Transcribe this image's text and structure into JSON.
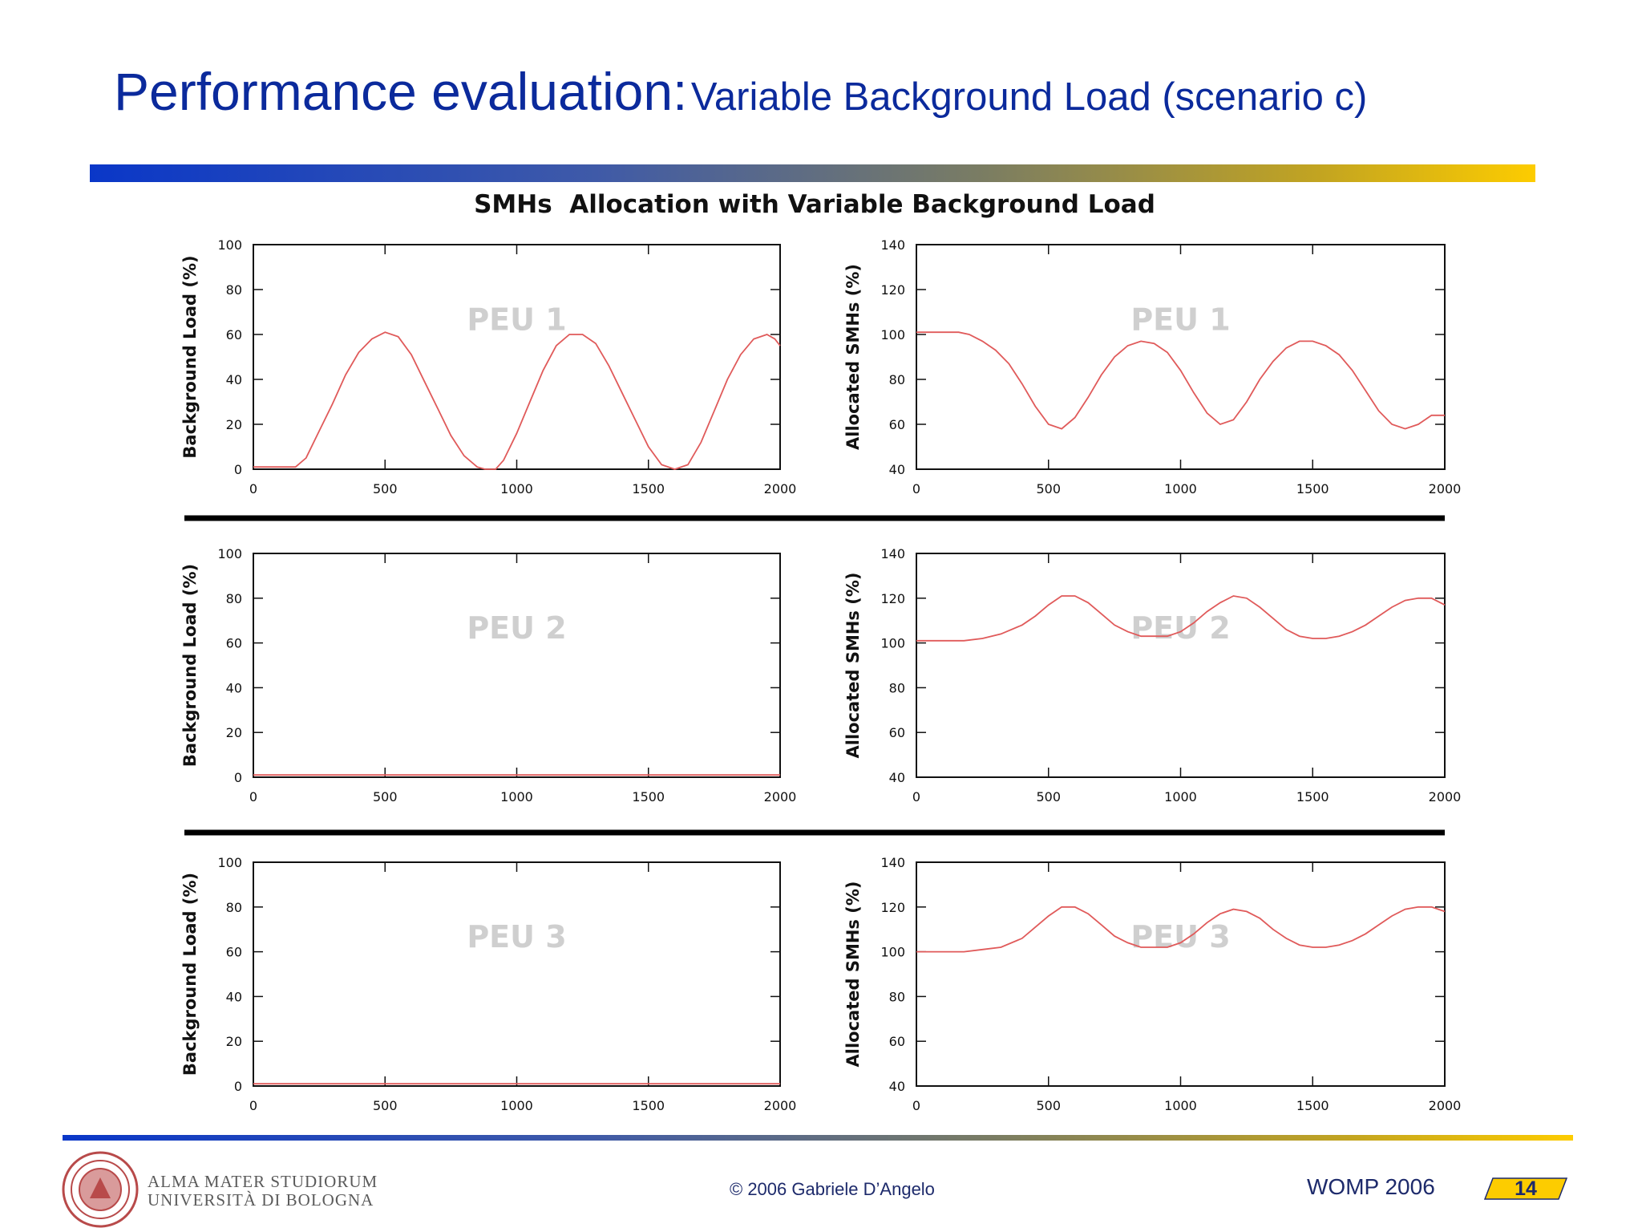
{
  "slide": {
    "title_main": "Performance evaluation:",
    "title_sub": "Variable Background Load (scenario c)"
  },
  "footer": {
    "copyright": "© 2006 Gabriele D’Angelo",
    "conference": "WOMP 2006",
    "page": "14",
    "institution_line1": "ALMA MATER STUDIORUM",
    "institution_line2": "UNIVERSITÀ DI BOLOGNA"
  },
  "colors": {
    "title": "#0b2a9c",
    "series": "#e05a5a",
    "footer_text": "#1d2a6b",
    "page_box": "#fdcc00"
  },
  "chart_data": {
    "title": "SMHs  Allocation with Variable Background Load",
    "type": "line",
    "panels": [
      {
        "peu": "PEU  1",
        "ylabel": "Background Load (%)",
        "ylim": [
          0,
          100
        ],
        "yticks": [
          "0",
          "20",
          "40",
          "60",
          "80",
          "100"
        ],
        "xticks": [
          "0",
          "500",
          "1000",
          "1500",
          "2000"
        ],
        "xlim": [
          0,
          2000
        ],
        "x": [
          0,
          80,
          160,
          200,
          250,
          300,
          350,
          400,
          450,
          500,
          550,
          600,
          650,
          700,
          750,
          800,
          850,
          880,
          920,
          950,
          1000,
          1050,
          1100,
          1150,
          1200,
          1250,
          1300,
          1350,
          1400,
          1450,
          1500,
          1550,
          1600,
          1650,
          1700,
          1750,
          1800,
          1850,
          1900,
          1950,
          1980,
          2000
        ],
        "y": [
          1,
          1,
          1,
          5,
          17,
          29,
          42,
          52,
          58,
          61,
          59,
          51,
          39,
          27,
          15,
          6,
          1,
          0,
          0,
          4,
          16,
          30,
          44,
          55,
          60,
          60,
          56,
          46,
          34,
          22,
          10,
          2,
          0,
          2,
          12,
          26,
          40,
          51,
          58,
          60,
          58,
          55
        ]
      },
      {
        "peu": "PEU  1",
        "ylabel": "Allocated SMHs (%)",
        "ylim": [
          40,
          140
        ],
        "yticks": [
          "40",
          "60",
          "80",
          "100",
          "120",
          "140"
        ],
        "xticks": [
          "0",
          "500",
          "1000",
          "1500",
          "2000"
        ],
        "xlim": [
          0,
          2000
        ],
        "x": [
          0,
          100,
          160,
          200,
          250,
          300,
          350,
          400,
          450,
          500,
          550,
          600,
          650,
          700,
          750,
          800,
          850,
          900,
          950,
          1000,
          1050,
          1100,
          1150,
          1200,
          1250,
          1300,
          1350,
          1400,
          1450,
          1500,
          1550,
          1600,
          1650,
          1700,
          1750,
          1800,
          1850,
          1900,
          1950,
          2000
        ],
        "y": [
          101,
          101,
          101,
          100,
          97,
          93,
          87,
          78,
          68,
          60,
          58,
          63,
          72,
          82,
          90,
          95,
          97,
          96,
          92,
          84,
          74,
          65,
          60,
          62,
          70,
          80,
          88,
          94,
          97,
          97,
          95,
          91,
          84,
          75,
          66,
          60,
          58,
          60,
          64,
          64
        ]
      },
      {
        "peu": "PEU  2",
        "ylabel": "Background Load (%)",
        "ylim": [
          0,
          100
        ],
        "yticks": [
          "0",
          "20",
          "40",
          "60",
          "80",
          "100"
        ],
        "xticks": [
          "0",
          "500",
          "1000",
          "1500",
          "2000"
        ],
        "xlim": [
          0,
          2000
        ],
        "x": [
          0,
          2000
        ],
        "y": [
          1,
          1
        ]
      },
      {
        "peu": "PEU  2",
        "ylabel": "Allocated SMHs (%)",
        "ylim": [
          40,
          140
        ],
        "yticks": [
          "40",
          "60",
          "80",
          "100",
          "120",
          "140"
        ],
        "xticks": [
          "0",
          "500",
          "1000",
          "1500",
          "2000"
        ],
        "xlim": [
          0,
          2000
        ],
        "x": [
          0,
          100,
          180,
          250,
          320,
          400,
          450,
          500,
          550,
          600,
          650,
          700,
          750,
          800,
          850,
          900,
          950,
          1000,
          1050,
          1100,
          1150,
          1200,
          1250,
          1300,
          1350,
          1400,
          1450,
          1500,
          1550,
          1600,
          1650,
          1700,
          1750,
          1800,
          1850,
          1900,
          1950,
          2000
        ],
        "y": [
          101,
          101,
          101,
          102,
          104,
          108,
          112,
          117,
          121,
          121,
          118,
          113,
          108,
          105,
          103,
          103,
          103,
          105,
          109,
          114,
          118,
          121,
          120,
          116,
          111,
          106,
          103,
          102,
          102,
          103,
          105,
          108,
          112,
          116,
          119,
          120,
          120,
          117
        ]
      },
      {
        "peu": "PEU  3",
        "ylabel": "Background Load (%)",
        "ylim": [
          0,
          100
        ],
        "yticks": [
          "0",
          "20",
          "40",
          "60",
          "80",
          "100"
        ],
        "xticks": [
          "0",
          "500",
          "1000",
          "1500",
          "2000"
        ],
        "xlim": [
          0,
          2000
        ],
        "x": [
          0,
          2000
        ],
        "y": [
          1,
          1
        ]
      },
      {
        "peu": "PEU  3",
        "ylabel": "Allocated SMHs (%)",
        "ylim": [
          40,
          140
        ],
        "yticks": [
          "40",
          "60",
          "80",
          "100",
          "120",
          "140"
        ],
        "xticks": [
          "0",
          "500",
          "1000",
          "1500",
          "2000"
        ],
        "xlim": [
          0,
          2000
        ],
        "x": [
          0,
          100,
          180,
          250,
          320,
          400,
          450,
          500,
          550,
          600,
          650,
          700,
          750,
          800,
          850,
          900,
          950,
          1000,
          1050,
          1100,
          1150,
          1200,
          1250,
          1300,
          1350,
          1400,
          1450,
          1500,
          1550,
          1600,
          1650,
          1700,
          1750,
          1800,
          1850,
          1900,
          1950,
          2000
        ],
        "y": [
          100,
          100,
          100,
          101,
          102,
          106,
          111,
          116,
          120,
          120,
          117,
          112,
          107,
          104,
          102,
          102,
          102,
          104,
          108,
          113,
          117,
          119,
          118,
          115,
          110,
          106,
          103,
          102,
          102,
          103,
          105,
          108,
          112,
          116,
          119,
          120,
          120,
          118
        ]
      }
    ]
  }
}
